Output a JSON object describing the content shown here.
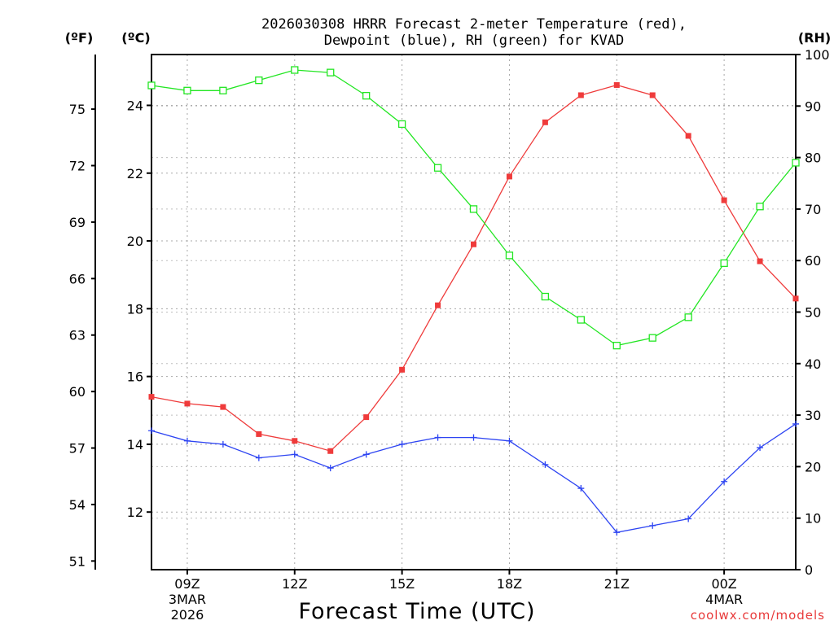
{
  "chart_data": {
    "type": "line",
    "title_line1": "2026030308 HRRR Forecast 2-meter Temperature (red),",
    "title_line2": "Dewpoint (blue), RH (green) for KVAD",
    "xlabel": "Forecast Time (UTC)",
    "credit": "coolwx.com/models",
    "units": {
      "fahrenheit": "(ºF)",
      "celsius": "(ºC)",
      "rh": "(RH)"
    },
    "x_hours": [
      8,
      9,
      10,
      11,
      12,
      13,
      14,
      15,
      16,
      17,
      18,
      19,
      20,
      21,
      22,
      23,
      24,
      25,
      26
    ],
    "xlim": [
      8,
      26
    ],
    "x_ticks": [
      {
        "hour": 9,
        "label": "09Z",
        "sub1": "3MAR",
        "sub2": "2026"
      },
      {
        "hour": 12,
        "label": "12Z",
        "sub1": "",
        "sub2": ""
      },
      {
        "hour": 15,
        "label": "15Z",
        "sub1": "",
        "sub2": ""
      },
      {
        "hour": 18,
        "label": "18Z",
        "sub1": "",
        "sub2": ""
      },
      {
        "hour": 21,
        "label": "21Z",
        "sub1": "",
        "sub2": ""
      },
      {
        "hour": 24,
        "label": "00Z",
        "sub1": "4MAR",
        "sub2": ""
      }
    ],
    "celsius_axis": {
      "lim": [
        10.3,
        25.5
      ],
      "ticks": [
        12,
        14,
        16,
        18,
        20,
        22,
        24
      ]
    },
    "fahrenheit_axis": {
      "ticks": [
        51,
        54,
        57,
        60,
        63,
        66,
        69,
        72,
        75
      ]
    },
    "rh_axis": {
      "lim": [
        0,
        100
      ],
      "ticks": [
        0,
        10,
        20,
        30,
        40,
        50,
        60,
        70,
        80,
        90,
        100
      ]
    },
    "series": [
      {
        "name": "Temperature",
        "color": "#ef3b3b",
        "axis": "celsius",
        "marker": "filled-square",
        "values": [
          15.4,
          15.2,
          15.1,
          14.3,
          14.1,
          13.8,
          14.8,
          16.2,
          18.1,
          19.9,
          21.9,
          23.5,
          24.3,
          24.6,
          24.3,
          23.1,
          21.2,
          19.4,
          18.3
        ]
      },
      {
        "name": "Dewpoint",
        "color": "#2d44f2",
        "axis": "celsius",
        "marker": "plus",
        "values": [
          14.4,
          14.1,
          14.0,
          13.6,
          13.7,
          13.3,
          13.7,
          14.0,
          14.2,
          14.2,
          14.1,
          13.4,
          12.7,
          11.4,
          11.6,
          11.8,
          12.9,
          13.9,
          14.6
        ]
      },
      {
        "name": "RH",
        "color": "#22e622",
        "axis": "rh",
        "marker": "open-square",
        "values": [
          94,
          93,
          93,
          95,
          97,
          96.5,
          92,
          86.5,
          78,
          70,
          61,
          53,
          48.5,
          43.5,
          45,
          49,
          59.5,
          70.5,
          79
        ]
      }
    ]
  }
}
